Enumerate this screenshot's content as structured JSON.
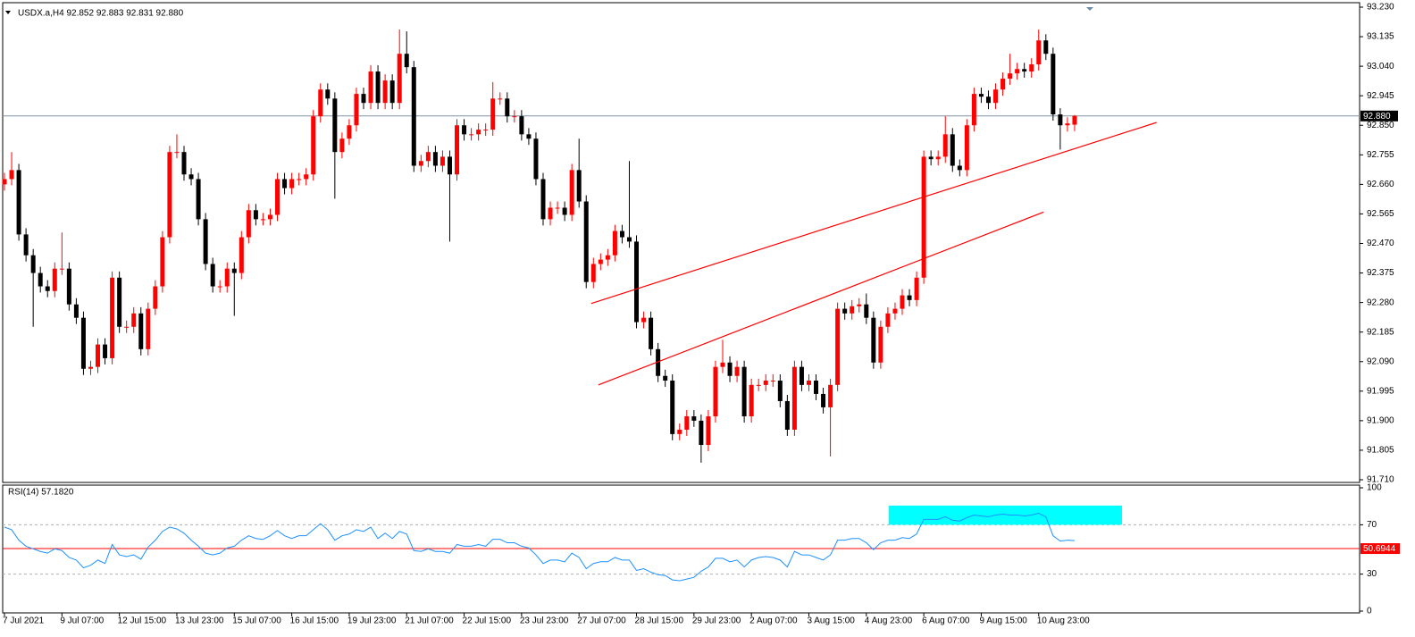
{
  "chart_data": [
    {
      "type": "candlestick",
      "title": "USDX.a,H4  92.852 92.883 92.831 92.880",
      "open": [
        92.66,
        92.677,
        92.706,
        92.499,
        92.432,
        92.375,
        92.332,
        92.317,
        92.389,
        92.389,
        92.274,
        92.231,
        92.067,
        92.073,
        92.145,
        92.101,
        92.36,
        92.202,
        92.202,
        92.245,
        92.13,
        92.26,
        92.332,
        92.49,
        92.764,
        92.764,
        92.692,
        92.677,
        92.548,
        92.404,
        92.332,
        92.332,
        92.389,
        92.375,
        92.49,
        92.577,
        92.548,
        92.548,
        92.562,
        92.677,
        92.648,
        92.677,
        92.677,
        92.692,
        92.879,
        92.965,
        92.936,
        92.764,
        92.807,
        92.85,
        92.951,
        92.922,
        93.023,
        92.922,
        92.994,
        92.922,
        93.08,
        93.037,
        92.72,
        92.735,
        92.764,
        92.72,
        92.749,
        92.692,
        92.85,
        92.821,
        92.821,
        92.836,
        92.836,
        92.936,
        92.936,
        92.879,
        92.879,
        92.821,
        92.807,
        92.677,
        92.548,
        92.585,
        92.585,
        92.562,
        92.706,
        92.605,
        92.346,
        92.404,
        92.418,
        92.432,
        92.51,
        92.49,
        92.476,
        92.217,
        92.231,
        92.13,
        92.044,
        92.029,
        91.857,
        91.871,
        91.914,
        91.9,
        91.822,
        91.914,
        92.073,
        92.087,
        92.044,
        92.073,
        91.914,
        92.015,
        92.015,
        92.029,
        92.029,
        91.963,
        91.871,
        92.073,
        92.015,
        92.029,
        91.986,
        91.943,
        92.015,
        92.26,
        92.245,
        92.268,
        92.274,
        92.231,
        92.087,
        92.202,
        92.245,
        92.26,
        92.303,
        92.288,
        92.36,
        92.749,
        92.741,
        92.749,
        92.821,
        92.72,
        92.706,
        92.85,
        92.951,
        92.942,
        92.922,
        92.965,
        93.0,
        93.017,
        93.031,
        93.023,
        93.046,
        93.123,
        93.08,
        92.885,
        92.85,
        92.852
      ],
      "high": [
        92.697,
        92.764,
        92.726,
        92.519,
        92.452,
        92.395,
        92.352,
        92.409,
        92.505,
        92.409,
        92.294,
        92.251,
        92.093,
        92.165,
        92.165,
        92.38,
        92.38,
        92.222,
        92.265,
        92.265,
        92.28,
        92.352,
        92.51,
        92.784,
        92.821,
        92.784,
        92.712,
        92.697,
        92.568,
        92.424,
        92.352,
        92.409,
        92.409,
        92.51,
        92.597,
        92.597,
        92.568,
        92.582,
        92.697,
        92.697,
        92.697,
        92.697,
        92.712,
        92.899,
        92.985,
        92.985,
        92.956,
        92.827,
        92.87,
        92.971,
        92.971,
        93.043,
        93.043,
        93.014,
        93.014,
        93.158,
        93.152,
        93.057,
        92.755,
        92.784,
        92.784,
        92.769,
        92.769,
        92.87,
        92.87,
        92.841,
        92.856,
        92.856,
        92.989,
        92.956,
        92.956,
        92.899,
        92.899,
        92.841,
        92.827,
        92.697,
        92.605,
        92.605,
        92.605,
        92.726,
        92.807,
        92.625,
        92.424,
        92.438,
        92.452,
        92.53,
        92.53,
        92.735,
        92.496,
        92.251,
        92.251,
        92.15,
        92.064,
        92.049,
        91.891,
        91.934,
        91.934,
        91.92,
        91.934,
        92.093,
        92.16,
        92.107,
        92.093,
        92.093,
        92.035,
        92.035,
        92.049,
        92.049,
        92.049,
        91.983,
        92.093,
        92.093,
        92.049,
        92.049,
        92.006,
        92.035,
        92.28,
        92.28,
        92.288,
        92.294,
        92.309,
        92.251,
        92.222,
        92.265,
        92.28,
        92.323,
        92.323,
        92.38,
        92.769,
        92.769,
        92.769,
        92.879,
        92.841,
        92.74,
        92.87,
        92.971,
        92.971,
        92.962,
        92.985,
        93.02,
        93.08,
        93.051,
        93.051,
        93.066,
        93.158,
        93.143,
        93.1,
        92.905,
        92.876,
        92.883
      ],
      "low": [
        92.64,
        92.657,
        92.479,
        92.412,
        92.202,
        92.312,
        92.297,
        92.297,
        92.369,
        92.254,
        92.211,
        92.047,
        92.047,
        92.053,
        92.081,
        92.081,
        92.182,
        92.182,
        92.182,
        92.11,
        92.11,
        92.24,
        92.312,
        92.47,
        92.744,
        92.672,
        92.657,
        92.528,
        92.384,
        92.312,
        92.312,
        92.312,
        92.237,
        92.355,
        92.47,
        92.528,
        92.528,
        92.528,
        92.542,
        92.628,
        92.628,
        92.657,
        92.657,
        92.672,
        92.859,
        92.916,
        92.614,
        92.744,
        92.787,
        92.83,
        92.902,
        92.902,
        92.902,
        92.902,
        92.902,
        92.902,
        93.017,
        92.7,
        92.7,
        92.715,
        92.7,
        92.7,
        92.476,
        92.672,
        92.801,
        92.801,
        92.801,
        92.816,
        92.816,
        92.916,
        92.859,
        92.859,
        92.801,
        92.787,
        92.657,
        92.528,
        92.528,
        92.565,
        92.542,
        92.542,
        92.585,
        92.326,
        92.326,
        92.384,
        92.398,
        92.412,
        92.47,
        92.456,
        92.197,
        92.197,
        92.11,
        92.024,
        92.009,
        91.837,
        91.837,
        91.851,
        91.88,
        91.765,
        91.802,
        91.894,
        92.053,
        92.024,
        92.024,
        91.894,
        91.894,
        91.995,
        91.995,
        92.009,
        91.943,
        91.851,
        91.851,
        91.995,
        91.995,
        91.966,
        91.923,
        91.785,
        91.995,
        92.225,
        92.225,
        92.248,
        92.211,
        92.067,
        92.067,
        92.182,
        92.225,
        92.24,
        92.268,
        92.268,
        92.34,
        92.721,
        92.721,
        92.729,
        92.7,
        92.686,
        92.686,
        92.83,
        92.922,
        92.902,
        92.902,
        92.945,
        92.98,
        92.997,
        93.003,
        93.003,
        93.026,
        93.06,
        92.865,
        92.772,
        92.83,
        92.831
      ],
      "close": [
        92.677,
        92.706,
        92.499,
        92.432,
        92.375,
        92.332,
        92.317,
        92.389,
        92.389,
        92.274,
        92.231,
        92.067,
        92.073,
        92.145,
        92.101,
        92.36,
        92.202,
        92.202,
        92.245,
        92.13,
        92.26,
        92.332,
        92.49,
        92.764,
        92.764,
        92.692,
        92.677,
        92.548,
        92.404,
        92.332,
        92.332,
        92.389,
        92.375,
        92.49,
        92.577,
        92.548,
        92.548,
        92.562,
        92.677,
        92.648,
        92.677,
        92.677,
        92.692,
        92.879,
        92.965,
        92.936,
        92.764,
        92.807,
        92.85,
        92.951,
        92.922,
        93.023,
        92.922,
        92.994,
        92.922,
        93.08,
        93.037,
        92.72,
        92.735,
        92.764,
        92.72,
        92.749,
        92.692,
        92.85,
        92.821,
        92.821,
        92.836,
        92.836,
        92.936,
        92.936,
        92.879,
        92.879,
        92.821,
        92.807,
        92.677,
        92.548,
        92.585,
        92.585,
        92.562,
        92.706,
        92.605,
        92.346,
        92.404,
        92.418,
        92.432,
        92.51,
        92.49,
        92.476,
        92.217,
        92.231,
        92.13,
        92.044,
        92.029,
        91.857,
        91.871,
        91.914,
        91.9,
        91.822,
        91.914,
        92.073,
        92.087,
        92.044,
        92.073,
        91.914,
        92.015,
        92.015,
        92.029,
        92.029,
        91.963,
        91.871,
        92.073,
        92.015,
        92.029,
        91.986,
        91.943,
        92.015,
        92.26,
        92.245,
        92.268,
        92.274,
        92.231,
        92.087,
        92.202,
        92.245,
        92.26,
        92.303,
        92.288,
        92.36,
        92.749,
        92.741,
        92.749,
        92.821,
        92.72,
        92.706,
        92.85,
        92.951,
        92.942,
        92.922,
        92.965,
        93.0,
        93.017,
        93.031,
        93.023,
        93.046,
        93.123,
        93.08,
        92.885,
        92.85,
        92.856,
        92.88
      ],
      "up_color": "#ff0000",
      "down_color": "#000000",
      "ylim": [
        91.71,
        93.23
      ],
      "yticks": [
        {
          "value": 93.23,
          "label": "93.230"
        },
        {
          "value": 93.135,
          "label": "93.135"
        },
        {
          "value": 93.04,
          "label": "93.040"
        },
        {
          "value": 92.945,
          "label": "92.945"
        },
        {
          "value": 92.85,
          "label": "92.850"
        },
        {
          "value": 92.755,
          "label": "92.755"
        },
        {
          "value": 92.66,
          "label": "92.660"
        },
        {
          "value": 92.565,
          "label": "92.565"
        },
        {
          "value": 92.47,
          "label": "92.470"
        },
        {
          "value": 92.375,
          "label": "92.375"
        },
        {
          "value": 92.28,
          "label": "92.280"
        },
        {
          "value": 92.185,
          "label": "92.185"
        },
        {
          "value": 92.09,
          "label": "92.090"
        },
        {
          "value": 91.995,
          "label": "91.995"
        },
        {
          "value": 91.9,
          "label": "91.900"
        },
        {
          "value": 91.805,
          "label": "91.805"
        },
        {
          "value": 91.71,
          "label": "91.710"
        }
      ],
      "price_line": {
        "value": 92.88,
        "label": "92.880",
        "color": "#7f93a8"
      },
      "trendlines": [
        {
          "x": [
            81.7,
            160.4
          ],
          "y": [
            92.277,
            92.859
          ],
          "color": "#ff0000"
        },
        {
          "x": [
            82.7,
            144.7
          ],
          "y": [
            92.015,
            92.571
          ],
          "color": "#ff0000"
        }
      ]
    },
    {
      "type": "line",
      "title": "RSI(14) 57.1820",
      "categories": [
        "7 Jul 2021",
        null,
        null,
        null,
        null,
        null,
        null,
        null,
        "9 Jul 07:00",
        null,
        null,
        null,
        null,
        null,
        null,
        null,
        "12 Jul 15:00",
        null,
        null,
        null,
        null,
        null,
        null,
        null,
        "13 Jul 23:00",
        null,
        null,
        null,
        null,
        null,
        null,
        null,
        "15 Jul 07:00",
        null,
        null,
        null,
        null,
        null,
        null,
        null,
        "16 Jul 15:00",
        null,
        null,
        null,
        null,
        null,
        null,
        null,
        "19 Jul 23:00",
        null,
        null,
        null,
        null,
        null,
        null,
        null,
        "21 Jul 07:00",
        null,
        null,
        null,
        null,
        null,
        null,
        null,
        "22 Jul 15:00",
        null,
        null,
        null,
        null,
        null,
        null,
        null,
        "23 Jul 23:00",
        null,
        null,
        null,
        null,
        null,
        null,
        null,
        "27 Jul 07:00",
        null,
        null,
        null,
        null,
        null,
        null,
        null,
        "28 Jul 15:00",
        null,
        null,
        null,
        null,
        null,
        null,
        null,
        "29 Jul 23:00",
        null,
        null,
        null,
        null,
        null,
        null,
        null,
        "2 Aug 07:00",
        null,
        null,
        null,
        null,
        null,
        null,
        null,
        "3 Aug 15:00",
        null,
        null,
        null,
        null,
        null,
        null,
        null,
        "4 Aug 23:00",
        null,
        null,
        null,
        null,
        null,
        null,
        null,
        "6 Aug 07:00",
        null,
        null,
        null,
        null,
        null,
        null,
        null,
        "9 Aug 15:00",
        null,
        null,
        null,
        null,
        null,
        null,
        null,
        "10 Aug 23:00",
        null,
        null,
        null,
        null,
        null
      ],
      "values": [
        68.1,
        66.0,
        57.5,
        52.6,
        50.5,
        48.4,
        47.0,
        50.5,
        49.1,
        43.5,
        41.4,
        35.1,
        37.2,
        41.4,
        38.6,
        54.0,
        45.6,
        44.2,
        45.6,
        42.1,
        51.9,
        57.5,
        64.6,
        68.1,
        66.7,
        63.2,
        57.5,
        52.6,
        47.0,
        45.6,
        47.0,
        51.2,
        52.6,
        57.5,
        61.1,
        58.9,
        58.2,
        61.1,
        65.3,
        61.1,
        58.9,
        61.1,
        61.1,
        66.0,
        70.9,
        66.0,
        57.5,
        61.1,
        62.5,
        66.0,
        64.6,
        68.1,
        58.9,
        63.2,
        58.9,
        64.6,
        62.5,
        49.1,
        48.4,
        50.5,
        48.4,
        48.4,
        47.0,
        54.0,
        52.6,
        52.6,
        54.0,
        52.6,
        58.2,
        58.2,
        55.4,
        55.4,
        52.6,
        51.2,
        45.6,
        38.6,
        41.4,
        41.4,
        40.0,
        47.0,
        43.5,
        34.4,
        38.6,
        40.0,
        40.0,
        43.5,
        41.4,
        41.4,
        33.0,
        34.4,
        31.6,
        29.5,
        28.8,
        25.3,
        24.6,
        26.0,
        27.4,
        32.3,
        35.8,
        42.8,
        42.8,
        40.0,
        41.4,
        35.8,
        41.4,
        43.5,
        44.2,
        43.5,
        41.4,
        35.8,
        48.4,
        45.6,
        45.6,
        43.5,
        41.4,
        45.6,
        57.5,
        57.5,
        58.9,
        58.9,
        55.4,
        49.8,
        55.4,
        57.5,
        57.5,
        59.6,
        58.9,
        62.5,
        74.4,
        74.4,
        74.4,
        76.5,
        73.7,
        73.0,
        75.8,
        77.9,
        77.2,
        76.5,
        77.9,
        78.6,
        77.9,
        77.9,
        77.2,
        77.9,
        79.3,
        76.5,
        61.1,
        56.8,
        57.5,
        57.182
      ],
      "color": "#1e90ff",
      "ylim": [
        0,
        100
      ],
      "yticks": [
        0,
        30,
        70,
        100
      ],
      "grid": true,
      "level": 50.6944,
      "level_color": "#ff0000",
      "highlight": {
        "x": [
          123.1,
          155.6
        ],
        "y": [
          70,
          85.6
        ],
        "color": "#00ffff"
      }
    }
  ]
}
